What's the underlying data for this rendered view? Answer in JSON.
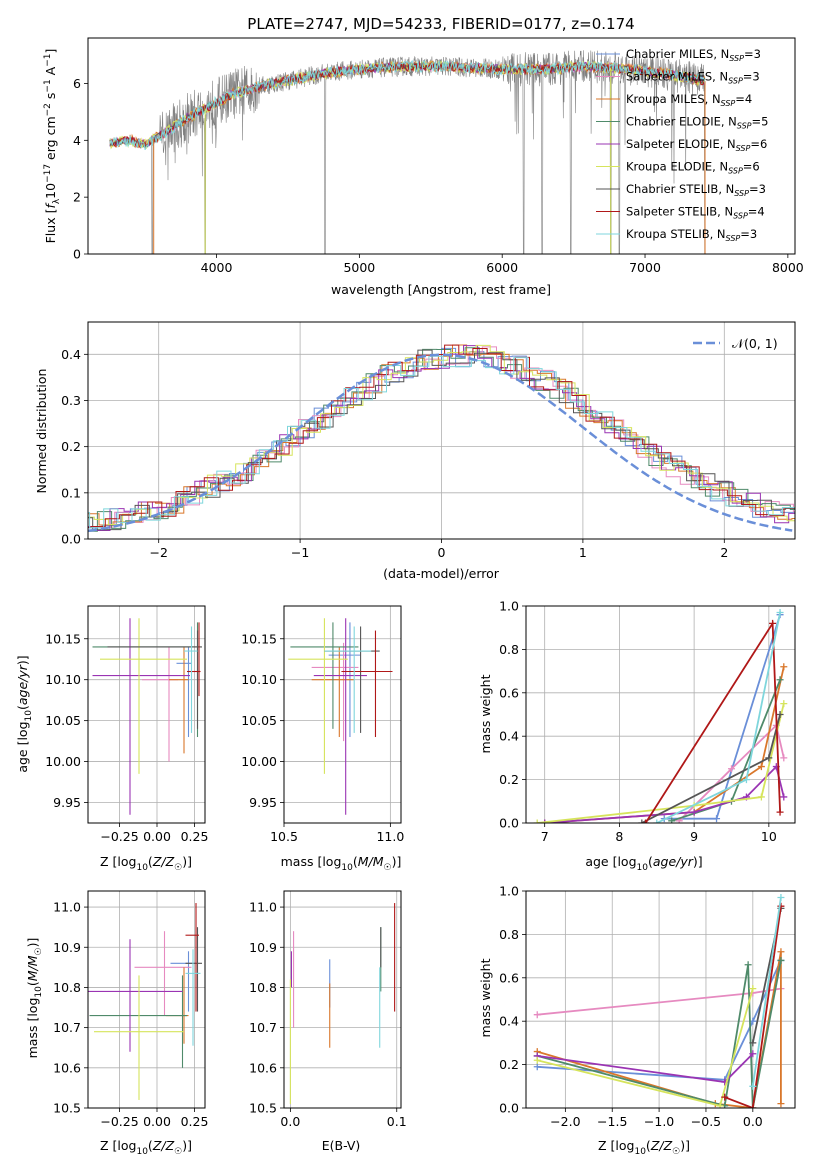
{
  "colors": {
    "chabrier_miles": "#6a8fd8",
    "salpeter_miles": "#e68ac0",
    "kroupa_miles": "#d9772b",
    "chabrier_elodie": "#4f8a6a",
    "salpeter_elodie": "#9a34b3",
    "kroupa_elodie": "#d6e45c",
    "chabrier_stelib": "#555555",
    "salpeter_stelib": "#b01818",
    "kroupa_stelib": "#7fd6dc",
    "observed_spectrum": "#808080",
    "normal_curve": "#6a8fd8",
    "grid": "#b0b0b0"
  },
  "chart_data": [
    {
      "type": "line",
      "title": "PLATE=2747, MJD=54233, FIBERID=0177, z=0.174",
      "xlabel": "wavelength [Angstrom, rest frame]",
      "ylabel": "Flux [f_λ 10^-17 erg cm^-2 s^-1 A^-1]",
      "xlim": [
        3100,
        8050
      ],
      "ylim": [
        0,
        7.6
      ],
      "xticks": [
        4000,
        5000,
        6000,
        7000,
        8000
      ],
      "yticks": [
        0,
        2,
        4,
        6
      ],
      "grid": false,
      "legend_position": "right",
      "legend": [
        {
          "label": "Chabrier MILES, N_SSP=3",
          "color_key": "chabrier_miles"
        },
        {
          "label": "Salpeter MILES, N_SSP=3",
          "color_key": "salpeter_miles"
        },
        {
          "label": "Kroupa MILES, N_SSP=4",
          "color_key": "kroupa_miles"
        },
        {
          "label": "Chabrier ELODIE, N_SSP=5",
          "color_key": "chabrier_elodie"
        },
        {
          "label": "Salpeter ELODIE, N_SSP=6",
          "color_key": "salpeter_elodie"
        },
        {
          "label": "Kroupa ELODIE, N_SSP=6",
          "color_key": "kroupa_elodie"
        },
        {
          "label": "Chabrier STELIB, N_SSP=3",
          "color_key": "chabrier_stelib"
        },
        {
          "label": "Salpeter STELIB, N_SSP=4",
          "color_key": "salpeter_stelib"
        },
        {
          "label": "Kroupa STELIB, N_SSP=3",
          "color_key": "kroupa_stelib"
        }
      ],
      "continuum": [
        [
          3250,
          3.9
        ],
        [
          3400,
          4.0
        ],
        [
          3500,
          3.85
        ],
        [
          3650,
          4.3
        ],
        [
          3800,
          4.8
        ],
        [
          3950,
          5.2
        ],
        [
          4100,
          5.6
        ],
        [
          4300,
          5.9
        ],
        [
          4500,
          6.1
        ],
        [
          4800,
          6.4
        ],
        [
          5000,
          6.5
        ],
        [
          5300,
          6.6
        ],
        [
          5600,
          6.6
        ],
        [
          6000,
          6.5
        ],
        [
          6300,
          6.5
        ],
        [
          6600,
          6.6
        ],
        [
          6900,
          6.5
        ],
        [
          7200,
          6.3
        ],
        [
          7500,
          6.0
        ],
        [
          7800,
          5.6
        ]
      ],
      "spectrum_range": [
        3250,
        7420
      ],
      "absorption_dips": [
        3550,
        3920,
        4760,
        6150,
        6280,
        6480,
        6760,
        6820,
        7420
      ]
    },
    {
      "type": "bar",
      "subtype": "step-histogram",
      "xlabel": "(data-model)/error",
      "ylabel": "Normed distribution",
      "xlim": [
        -2.5,
        2.5
      ],
      "ylim": [
        0,
        0.47
      ],
      "xticks": [
        -2,
        -1,
        0,
        1,
        2
      ],
      "yticks": [
        0.0,
        0.1,
        0.2,
        0.3,
        0.4
      ],
      "grid": true,
      "legend_position": "top-right",
      "legend": [
        {
          "label": "𝒩(0, 1)",
          "color_key": "normal_curve",
          "style": "dashed"
        }
      ],
      "series_color_keys": [
        "chabrier_miles",
        "salpeter_miles",
        "kroupa_miles",
        "chabrier_elodie",
        "salpeter_elodie",
        "kroupa_elodie",
        "chabrier_stelib",
        "salpeter_stelib",
        "kroupa_stelib"
      ]
    },
    {
      "type": "scatter",
      "subtype": "errorbar",
      "xlabel": "Z [log10(Z/Z☉)]",
      "ylabel": "age  [log10(age/yr)]",
      "xlim": [
        -0.46,
        0.32
      ],
      "ylim": [
        9.925,
        10.19
      ],
      "xticks": [
        -0.25,
        0.0,
        0.25
      ],
      "xticklabels": [
        "−0.25",
        "0.00",
        "0.25"
      ],
      "yticks": [
        9.95,
        10.0,
        10.05,
        10.1,
        10.15
      ],
      "grid": true,
      "points": [
        {
          "key": "chabrier_miles",
          "x": 0.21,
          "xerr": [
            0.08,
            0.02
          ],
          "y": 10.12,
          "yerr": [
            0.09,
            0.02
          ]
        },
        {
          "key": "salpeter_miles",
          "x": 0.08,
          "xerr": [
            0.18,
            0.06
          ],
          "y": 10.1,
          "yerr": [
            0.1,
            0.04
          ]
        },
        {
          "key": "kroupa_miles",
          "x": 0.18,
          "xerr": [
            0.1,
            0.03
          ],
          "y": 10.1,
          "yerr": [
            0.09,
            0.04
          ]
        },
        {
          "key": "chabrier_elodie",
          "x": 0.27,
          "xerr": [
            0.7,
            0.02
          ],
          "y": 10.14,
          "yerr": [
            0.11,
            0.03
          ]
        },
        {
          "key": "salpeter_elodie",
          "x": -0.18,
          "xerr": [
            0.25,
            0.4
          ],
          "y": 10.105,
          "yerr": [
            0.17,
            0.07
          ]
        },
        {
          "key": "kroupa_elodie",
          "x": -0.12,
          "xerr": [
            0.26,
            0.32
          ],
          "y": 10.125,
          "yerr": [
            0.14,
            0.05
          ]
        },
        {
          "key": "chabrier_stelib",
          "x": 0.27,
          "xerr": [
            0.6,
            0.03
          ],
          "y": 10.14,
          "yerr": [
            0.1,
            0.02
          ]
        },
        {
          "key": "salpeter_stelib",
          "x": 0.28,
          "xerr": [
            0.08,
            0.01
          ],
          "y": 10.11,
          "yerr": [
            0.03,
            0.06
          ]
        },
        {
          "key": "kroupa_stelib",
          "x": 0.23,
          "xerr": [
            0.05,
            0.04
          ],
          "y": 10.135,
          "yerr": [
            0.1,
            0.03
          ]
        }
      ]
    },
    {
      "type": "scatter",
      "subtype": "errorbar",
      "xlabel": "mass [log10(M/M☉)]",
      "ylabel": "",
      "xlim": [
        10.5,
        11.05
      ],
      "ylim": [
        9.925,
        10.19
      ],
      "xticks": [
        10.5,
        11.0
      ],
      "xticklabels": [
        "10.5",
        "11.0"
      ],
      "yticks": [
        9.95,
        10.0,
        10.05,
        10.1,
        10.15
      ],
      "grid": true,
      "points": [
        {
          "key": "chabrier_miles",
          "x": 10.81,
          "xerr": [
            0.1,
            0.05
          ],
          "y": 10.13,
          "yerr": [
            0.1,
            0.04
          ]
        },
        {
          "key": "salpeter_miles",
          "x": 10.78,
          "xerr": [
            0.15,
            0.07
          ],
          "y": 10.115,
          "yerr": [
            0.09,
            0.03
          ]
        },
        {
          "key": "kroupa_miles",
          "x": 10.76,
          "xerr": [
            0.13,
            0.07
          ],
          "y": 10.1,
          "yerr": [
            0.07,
            0.04
          ]
        },
        {
          "key": "chabrier_elodie",
          "x": 10.73,
          "xerr": [
            0.2,
            0.12
          ],
          "y": 10.14,
          "yerr": [
            0.1,
            0.03
          ]
        },
        {
          "key": "salpeter_elodie",
          "x": 10.79,
          "xerr": [
            0.15,
            0.1
          ],
          "y": 10.105,
          "yerr": [
            0.17,
            0.07
          ]
        },
        {
          "key": "kroupa_elodie",
          "x": 10.69,
          "xerr": [
            0.17,
            0.11
          ],
          "y": 10.125,
          "yerr": [
            0.14,
            0.05
          ]
        },
        {
          "key": "chabrier_stelib",
          "x": 10.86,
          "xerr": [
            0.17,
            0.09
          ],
          "y": 10.135,
          "yerr": [
            0.1,
            0.03
          ]
        },
        {
          "key": "salpeter_stelib",
          "x": 10.93,
          "xerr": [
            0.16,
            0.08
          ],
          "y": 10.11,
          "yerr": [
            0.08,
            0.05
          ]
        },
        {
          "key": "kroupa_stelib",
          "x": 10.83,
          "xerr": [
            0.14,
            0.08
          ],
          "y": 10.135,
          "yerr": [
            0.1,
            0.03
          ]
        }
      ]
    },
    {
      "type": "line",
      "xlabel": "age  [log10(age/yr)]",
      "ylabel": "mass weight",
      "xlim": [
        6.75,
        10.35
      ],
      "ylim": [
        0,
        1.0
      ],
      "xticks": [
        7,
        8,
        9,
        10
      ],
      "yticks": [
        0.0,
        0.2,
        0.4,
        0.6,
        0.8,
        1.0
      ],
      "grid": true,
      "series": [
        {
          "key": "chabrier_miles",
          "x": [
            8.6,
            9.3,
            10.15
          ],
          "y": [
            0.02,
            0.02,
            0.96
          ]
        },
        {
          "key": "salpeter_miles",
          "x": [
            8.8,
            9.5,
            10.1,
            10.2
          ],
          "y": [
            0.01,
            0.25,
            0.45,
            0.3
          ]
        },
        {
          "key": "kroupa_miles",
          "x": [
            7.0,
            9.0,
            9.9,
            10.2
          ],
          "y": [
            0.0,
            0.05,
            0.26,
            0.72
          ]
        },
        {
          "key": "chabrier_elodie",
          "x": [
            8.7,
            9.5,
            10.15
          ],
          "y": [
            0.01,
            0.1,
            0.66
          ]
        },
        {
          "key": "salpeter_elodie",
          "x": [
            7.0,
            9.0,
            9.7,
            10.1,
            10.2
          ],
          "y": [
            0.0,
            0.05,
            0.12,
            0.26,
            0.12
          ]
        },
        {
          "key": "kroupa_elodie",
          "x": [
            6.9,
            9.0,
            9.9,
            10.2
          ],
          "y": [
            0.0,
            0.08,
            0.12,
            0.55
          ]
        },
        {
          "key": "chabrier_stelib",
          "x": [
            8.3,
            10.0,
            10.15
          ],
          "y": [
            0.0,
            0.3,
            0.5
          ]
        },
        {
          "key": "salpeter_stelib",
          "x": [
            8.35,
            10.05,
            10.15
          ],
          "y": [
            0.0,
            0.92,
            0.05
          ]
        },
        {
          "key": "kroupa_stelib",
          "x": [
            8.5,
            9.7,
            10.15
          ],
          "y": [
            0.0,
            0.2,
            0.97
          ]
        }
      ]
    },
    {
      "type": "scatter",
      "subtype": "errorbar",
      "xlabel": "Z [log10(Z/Z☉)]",
      "ylabel": "mass [log10(M/M☉)]",
      "xlim": [
        -0.46,
        0.32
      ],
      "ylim": [
        10.5,
        11.04
      ],
      "xticks": [
        -0.25,
        0.0,
        0.25
      ],
      "xticklabels": [
        "−0.25",
        "0.00",
        "0.25"
      ],
      "yticks": [
        10.5,
        10.6,
        10.7,
        10.8,
        10.9,
        11.0
      ],
      "grid": true,
      "points": [
        {
          "key": "chabrier_miles",
          "x": 0.21,
          "xerr": [
            0.12,
            0.05
          ],
          "y": 10.86,
          "yerr": [
            0.12,
            0.03
          ]
        },
        {
          "key": "salpeter_miles",
          "x": 0.05,
          "xerr": [
            0.2,
            0.18
          ],
          "y": 10.85,
          "yerr": [
            0.12,
            0.09
          ]
        },
        {
          "key": "kroupa_miles",
          "x": 0.18,
          "xerr": [
            0.12,
            0.03
          ],
          "y": 10.73,
          "yerr": [
            0.07,
            0.12
          ]
        },
        {
          "key": "chabrier_elodie",
          "x": 0.17,
          "xerr": [
            0.62,
            0.03
          ],
          "y": 10.73,
          "yerr": [
            0.13,
            0.1
          ]
        },
        {
          "key": "salpeter_elodie",
          "x": -0.18,
          "xerr": [
            0.28,
            0.35
          ],
          "y": 10.79,
          "yerr": [
            0.15,
            0.13
          ]
        },
        {
          "key": "kroupa_elodie",
          "x": -0.12,
          "xerr": [
            0.3,
            0.3
          ],
          "y": 10.69,
          "yerr": [
            0.17,
            0.14
          ]
        },
        {
          "key": "chabrier_stelib",
          "x": 0.27,
          "xerr": [
            0.08,
            0.03
          ],
          "y": 10.86,
          "yerr": [
            0.12,
            0.09
          ]
        },
        {
          "key": "salpeter_stelib",
          "x": 0.26,
          "xerr": [
            0.07,
            0.02
          ],
          "y": 10.93,
          "yerr": [
            0.19,
            0.08
          ]
        },
        {
          "key": "kroupa_stelib",
          "x": 0.24,
          "xerr": [
            0.05,
            0.05
          ],
          "y": 10.835,
          "yerr": [
            0.18,
            0.06
          ]
        }
      ]
    },
    {
      "type": "scatter",
      "subtype": "errorbar",
      "xlabel": "E(B-V)",
      "ylabel": "",
      "xlim": [
        -0.006,
        0.104
      ],
      "ylim": [
        10.5,
        11.04
      ],
      "xticks": [
        0.0,
        0.1
      ],
      "xticklabels": [
        "0.0",
        "0.1"
      ],
      "yticks": [
        10.5,
        10.6,
        10.7,
        10.8,
        10.9,
        11.0
      ],
      "grid": true,
      "points": [
        {
          "key": "chabrier_miles",
          "x": 0.037,
          "y": 10.81,
          "yerr": [
            0.06,
            0.06
          ]
        },
        {
          "key": "salpeter_miles",
          "x": 0.003,
          "y": 10.85,
          "yerr": [
            0.15,
            0.09
          ]
        },
        {
          "key": "kroupa_miles",
          "x": 0.037,
          "y": 10.73,
          "yerr": [
            0.08,
            0.08
          ]
        },
        {
          "key": "chabrier_elodie",
          "x": 0.085,
          "y": 10.86,
          "yerr": [
            0.07,
            0.09
          ]
        },
        {
          "key": "salpeter_elodie",
          "x": 0.001,
          "y": 10.84,
          "yerr": [
            0.04,
            0.05
          ]
        },
        {
          "key": "kroupa_elodie",
          "x": 0.0,
          "y": 10.69,
          "yerr": [
            0.18,
            0.13
          ]
        },
        {
          "key": "chabrier_stelib",
          "x": 0.085,
          "y": 10.88,
          "yerr": [
            0.03,
            0.07
          ]
        },
        {
          "key": "salpeter_stelib",
          "x": 0.098,
          "y": 10.87,
          "yerr": [
            0.13,
            0.14
          ]
        },
        {
          "key": "kroupa_stelib",
          "x": 0.084,
          "y": 10.75,
          "yerr": [
            0.1,
            0.1
          ]
        }
      ]
    },
    {
      "type": "line",
      "xlabel": "Z [log10(Z/Z☉)]",
      "ylabel": "mass weight",
      "xlim": [
        -2.42,
        0.45
      ],
      "ylim": [
        0,
        1.0
      ],
      "xticks": [
        -2.0,
        -1.5,
        -1.0,
        -0.5,
        0.0
      ],
      "xticklabels": [
        "−2.0",
        "−1.5",
        "−1.0",
        "−0.5",
        "0.0"
      ],
      "yticks": [
        0.0,
        0.2,
        0.4,
        0.6,
        0.8,
        1.0
      ],
      "grid": true,
      "series": [
        {
          "key": "chabrier_miles",
          "x": [
            -2.3,
            -0.3,
            0.0,
            0.3
          ],
          "y": [
            0.19,
            0.13,
            0.4,
            0.68
          ]
        },
        {
          "key": "salpeter_miles",
          "x": [
            -2.3,
            0.0,
            0.3
          ],
          "y": [
            0.43,
            0.53,
            0.55
          ]
        },
        {
          "key": "kroupa_miles",
          "x": [
            -2.3,
            -0.4,
            0.0,
            0.3,
            0.3
          ],
          "y": [
            0.26,
            0.02,
            0.0,
            0.72,
            0.02
          ]
        },
        {
          "key": "chabrier_elodie",
          "x": [
            -2.3,
            -0.3,
            -0.05,
            0.0,
            0.3
          ],
          "y": [
            0.24,
            0.01,
            0.66,
            0.0,
            0.68
          ]
        },
        {
          "key": "salpeter_elodie",
          "x": [
            -2.3,
            -0.3,
            0.0
          ],
          "y": [
            0.24,
            0.12,
            0.25
          ]
        },
        {
          "key": "kroupa_elodie",
          "x": [
            -2.3,
            -0.35,
            0.0
          ],
          "y": [
            0.22,
            0.01,
            0.55
          ]
        },
        {
          "key": "chabrier_stelib",
          "x": [
            0.0,
            0.3
          ],
          "y": [
            0.3,
            0.92
          ]
        },
        {
          "key": "salpeter_stelib",
          "x": [
            -0.3,
            0.0,
            0.3
          ],
          "y": [
            0.05,
            0.0,
            0.93
          ]
        },
        {
          "key": "kroupa_stelib",
          "x": [
            0.0,
            0.3
          ],
          "y": [
            0.1,
            0.97
          ]
        }
      ]
    }
  ]
}
